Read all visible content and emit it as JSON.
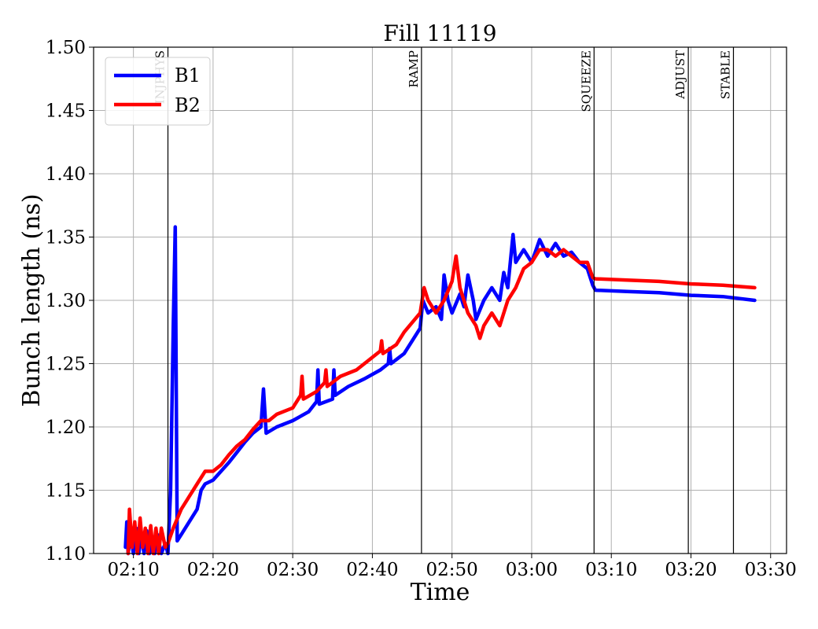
{
  "chart_data": {
    "type": "line",
    "title": "Fill 11119",
    "xlabel": "Time",
    "ylabel": "Bunch length (ns)",
    "xlim": [
      "02:05",
      "03:32"
    ],
    "ylim": [
      1.1,
      1.5
    ],
    "grid": true,
    "legend_position": "top-left",
    "x_ticks": [
      "02:10",
      "02:20",
      "02:30",
      "02:40",
      "02:50",
      "03:00",
      "03:10",
      "03:20",
      "03:30"
    ],
    "y_ticks": [
      "1.10",
      "1.15",
      "1.20",
      "1.25",
      "1.30",
      "1.35",
      "1.40",
      "1.45",
      "1.50"
    ],
    "phases": [
      {
        "label": "INJPHYS",
        "time": "02:14:20"
      },
      {
        "label": "RAMP",
        "time": "02:46:10"
      },
      {
        "label": "SQUEEZE",
        "time": "03:07:50"
      },
      {
        "label": "ADJUST",
        "time": "03:19:40"
      },
      {
        "label": "STABLE",
        "time": "03:25:20"
      }
    ],
    "series": [
      {
        "name": "B1",
        "color": "#0000ff",
        "points": [
          [
            "02:09:00",
            1.105
          ],
          [
            "02:09:10",
            1.125
          ],
          [
            "02:09:20",
            1.1
          ],
          [
            "02:09:40",
            1.115
          ],
          [
            "02:10:00",
            1.1
          ],
          [
            "02:10:20",
            1.12
          ],
          [
            "02:10:40",
            1.1
          ],
          [
            "02:11:00",
            1.115
          ],
          [
            "02:11:20",
            1.1
          ],
          [
            "02:11:40",
            1.118
          ],
          [
            "02:12:00",
            1.1
          ],
          [
            "02:12:20",
            1.11
          ],
          [
            "02:12:40",
            1.1
          ],
          [
            "02:13:00",
            1.115
          ],
          [
            "02:13:30",
            1.1
          ],
          [
            "02:14:00",
            1.108
          ],
          [
            "02:14:20",
            1.1
          ],
          [
            "02:14:40",
            1.15
          ],
          [
            "02:15:00",
            1.28
          ],
          [
            "02:15:15",
            1.358
          ],
          [
            "02:15:30",
            1.11
          ],
          [
            "02:16:00",
            1.115
          ],
          [
            "02:17:00",
            1.125
          ],
          [
            "02:18:00",
            1.135
          ],
          [
            "02:18:30",
            1.15
          ],
          [
            "02:19:00",
            1.155
          ],
          [
            "02:20:00",
            1.158
          ],
          [
            "02:21:00",
            1.165
          ],
          [
            "02:22:00",
            1.172
          ],
          [
            "02:23:00",
            1.18
          ],
          [
            "02:24:00",
            1.188
          ],
          [
            "02:25:00",
            1.195
          ],
          [
            "02:26:00",
            1.2
          ],
          [
            "02:26:20",
            1.23
          ],
          [
            "02:26:40",
            1.195
          ],
          [
            "02:28:00",
            1.2
          ],
          [
            "02:30:00",
            1.205
          ],
          [
            "02:32:00",
            1.212
          ],
          [
            "02:33:00",
            1.22
          ],
          [
            "02:33:10",
            1.245
          ],
          [
            "02:33:20",
            1.218
          ],
          [
            "02:35:00",
            1.222
          ],
          [
            "02:35:10",
            1.245
          ],
          [
            "02:35:20",
            1.225
          ],
          [
            "02:37:00",
            1.232
          ],
          [
            "02:39:00",
            1.238
          ],
          [
            "02:41:00",
            1.245
          ],
          [
            "02:42:00",
            1.25
          ],
          [
            "02:42:10",
            1.262
          ],
          [
            "02:42:20",
            1.25
          ],
          [
            "02:44:00",
            1.258
          ],
          [
            "02:46:00",
            1.278
          ],
          [
            "02:46:20",
            1.3
          ],
          [
            "02:47:00",
            1.29
          ],
          [
            "02:48:00",
            1.295
          ],
          [
            "02:48:40",
            1.285
          ],
          [
            "02:49:00",
            1.32
          ],
          [
            "02:49:30",
            1.3
          ],
          [
            "02:50:00",
            1.29
          ],
          [
            "02:51:00",
            1.305
          ],
          [
            "02:51:30",
            1.295
          ],
          [
            "02:52:00",
            1.32
          ],
          [
            "02:52:40",
            1.3
          ],
          [
            "02:53:00",
            1.285
          ],
          [
            "02:54:00",
            1.3
          ],
          [
            "02:55:00",
            1.31
          ],
          [
            "02:56:00",
            1.3
          ],
          [
            "02:56:30",
            1.322
          ],
          [
            "02:57:00",
            1.31
          ],
          [
            "02:57:40",
            1.352
          ],
          [
            "02:58:00",
            1.33
          ],
          [
            "02:59:00",
            1.34
          ],
          [
            "03:00:00",
            1.33
          ],
          [
            "03:01:00",
            1.348
          ],
          [
            "03:02:00",
            1.335
          ],
          [
            "03:03:00",
            1.345
          ],
          [
            "03:04:00",
            1.335
          ],
          [
            "03:05:00",
            1.338
          ],
          [
            "03:06:00",
            1.33
          ],
          [
            "03:07:00",
            1.325
          ],
          [
            "03:07:40",
            1.312
          ],
          [
            "03:08:00",
            1.308
          ],
          [
            "03:12:00",
            1.307
          ],
          [
            "03:16:00",
            1.306
          ],
          [
            "03:20:00",
            1.304
          ],
          [
            "03:24:00",
            1.303
          ],
          [
            "03:28:00",
            1.3
          ]
        ]
      },
      {
        "name": "B2",
        "color": "#ff0000",
        "points": [
          [
            "02:09:20",
            1.1
          ],
          [
            "02:09:30",
            1.135
          ],
          [
            "02:09:50",
            1.105
          ],
          [
            "02:10:10",
            1.125
          ],
          [
            "02:10:30",
            1.1
          ],
          [
            "02:10:50",
            1.128
          ],
          [
            "02:11:10",
            1.105
          ],
          [
            "02:11:30",
            1.12
          ],
          [
            "02:11:50",
            1.1
          ],
          [
            "02:12:10",
            1.122
          ],
          [
            "02:12:30",
            1.1
          ],
          [
            "02:12:50",
            1.12
          ],
          [
            "02:13:10",
            1.1
          ],
          [
            "02:13:30",
            1.12
          ],
          [
            "02:14:00",
            1.105
          ],
          [
            "02:14:20",
            1.108
          ],
          [
            "02:15:00",
            1.12
          ],
          [
            "02:16:00",
            1.135
          ],
          [
            "02:17:00",
            1.145
          ],
          [
            "02:18:00",
            1.155
          ],
          [
            "02:19:00",
            1.165
          ],
          [
            "02:20:00",
            1.165
          ],
          [
            "02:21:00",
            1.17
          ],
          [
            "02:22:00",
            1.178
          ],
          [
            "02:23:00",
            1.185
          ],
          [
            "02:24:00",
            1.19
          ],
          [
            "02:25:00",
            1.198
          ],
          [
            "02:26:00",
            1.205
          ],
          [
            "02:27:00",
            1.205
          ],
          [
            "02:28:00",
            1.21
          ],
          [
            "02:30:00",
            1.215
          ],
          [
            "02:31:00",
            1.225
          ],
          [
            "02:31:10",
            1.24
          ],
          [
            "02:31:20",
            1.222
          ],
          [
            "02:33:00",
            1.228
          ],
          [
            "02:34:00",
            1.235
          ],
          [
            "02:34:10",
            1.245
          ],
          [
            "02:34:20",
            1.232
          ],
          [
            "02:36:00",
            1.24
          ],
          [
            "02:38:00",
            1.245
          ],
          [
            "02:40:00",
            1.255
          ],
          [
            "02:41:00",
            1.26
          ],
          [
            "02:41:10",
            1.268
          ],
          [
            "02:41:20",
            1.258
          ],
          [
            "02:43:00",
            1.265
          ],
          [
            "02:44:00",
            1.275
          ],
          [
            "02:46:00",
            1.29
          ],
          [
            "02:46:30",
            1.31
          ],
          [
            "02:47:00",
            1.3
          ],
          [
            "02:48:00",
            1.29
          ],
          [
            "02:49:00",
            1.3
          ],
          [
            "02:50:00",
            1.315
          ],
          [
            "02:50:30",
            1.335
          ],
          [
            "02:51:00",
            1.31
          ],
          [
            "02:52:00",
            1.29
          ],
          [
            "02:53:00",
            1.28
          ],
          [
            "02:53:30",
            1.27
          ],
          [
            "02:54:00",
            1.28
          ],
          [
            "02:55:00",
            1.29
          ],
          [
            "02:56:00",
            1.28
          ],
          [
            "02:57:00",
            1.3
          ],
          [
            "02:58:00",
            1.31
          ],
          [
            "02:59:00",
            1.325
          ],
          [
            "03:00:00",
            1.33
          ],
          [
            "03:01:00",
            1.34
          ],
          [
            "03:02:00",
            1.34
          ],
          [
            "03:03:00",
            1.335
          ],
          [
            "03:04:00",
            1.34
          ],
          [
            "03:05:00",
            1.335
          ],
          [
            "03:06:00",
            1.33
          ],
          [
            "03:07:00",
            1.33
          ],
          [
            "03:07:40",
            1.318
          ],
          [
            "03:08:00",
            1.317
          ],
          [
            "03:12:00",
            1.316
          ],
          [
            "03:16:00",
            1.315
          ],
          [
            "03:20:00",
            1.313
          ],
          [
            "03:24:00",
            1.312
          ],
          [
            "03:28:00",
            1.31
          ]
        ]
      }
    ]
  }
}
